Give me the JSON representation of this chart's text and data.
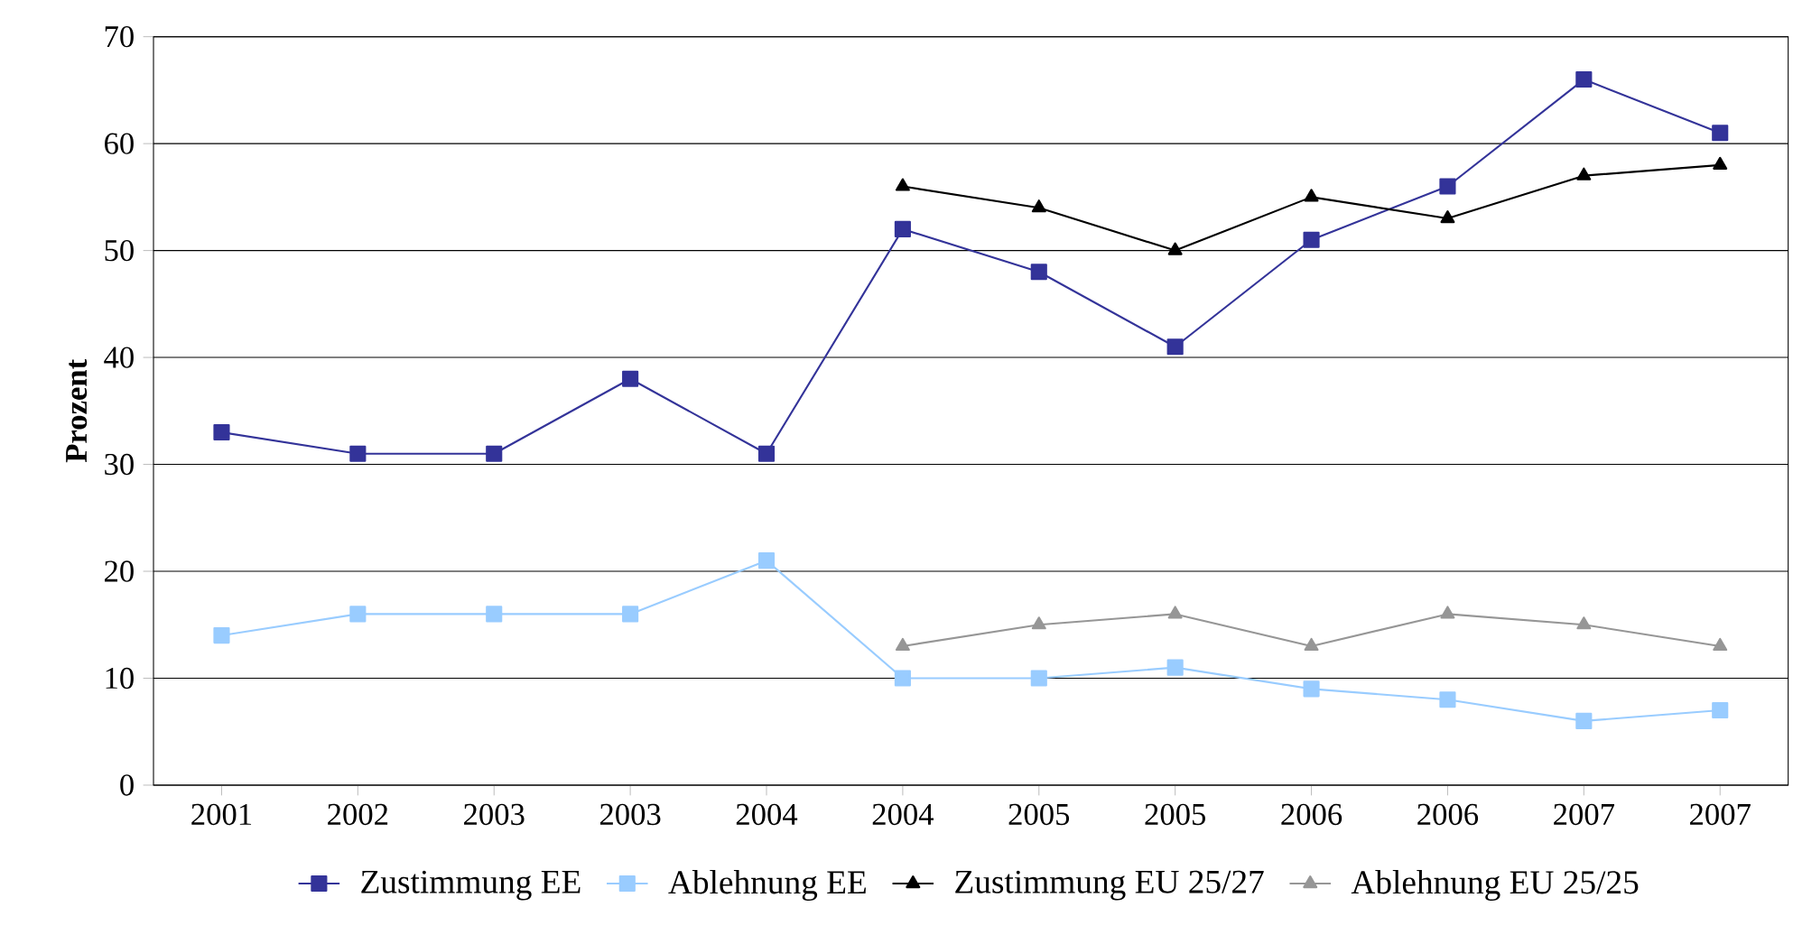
{
  "chart_data": {
    "type": "line",
    "ylabel": "Prozent",
    "categories": [
      "2001",
      "2002",
      "2003",
      "2003",
      "2004",
      "2004",
      "2005",
      "2005",
      "2006",
      "2006",
      "2007",
      "2007"
    ],
    "ylim": [
      0,
      70
    ],
    "yticks": [
      0,
      10,
      20,
      30,
      40,
      50,
      60,
      70
    ],
    "grid": "y",
    "legend": "bottom",
    "line_style": "solid",
    "series": [
      {
        "name": "Zustimmung EE",
        "color": "#333399",
        "marker": "square",
        "values": [
          33,
          31,
          31,
          38,
          31,
          52,
          48,
          41,
          51,
          56,
          66,
          61
        ]
      },
      {
        "name": "Ablehnung EE",
        "color": "#99ccff",
        "marker": "square",
        "values": [
          14,
          16,
          16,
          16,
          21,
          10,
          10,
          11,
          9,
          8,
          6,
          7
        ]
      },
      {
        "name": "Zustimmung EU 25/27",
        "color": "#000000",
        "marker": "triangle",
        "values": [
          null,
          null,
          null,
          null,
          null,
          56,
          54,
          50,
          55,
          53,
          57,
          58
        ]
      },
      {
        "name": "Ablehnung EU 25/25",
        "color": "#969696",
        "marker": "triangle",
        "values": [
          null,
          null,
          null,
          null,
          null,
          13,
          15,
          16,
          13,
          16,
          15,
          13
        ]
      }
    ]
  }
}
